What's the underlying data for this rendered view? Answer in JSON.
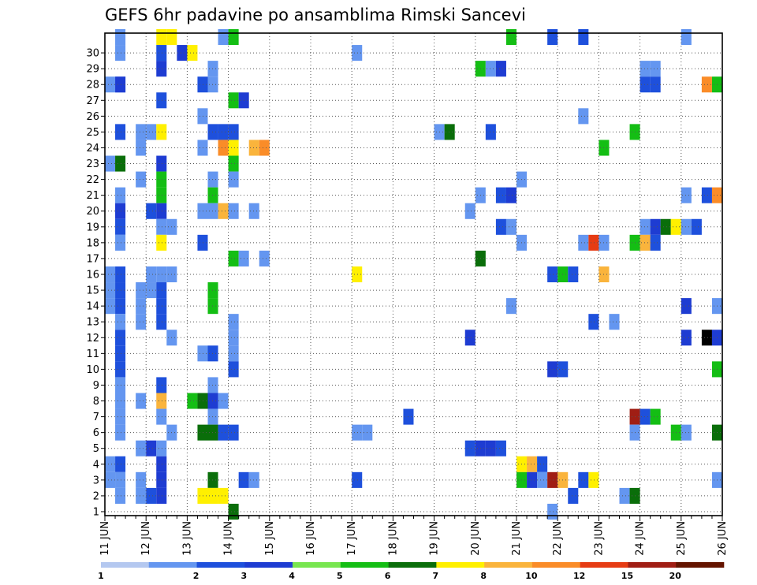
{
  "chart_data": {
    "type": "heatmap",
    "title": "GEFS 6hr padavine po ansamblima Rimski Sancevi",
    "members": [
      "1",
      "2",
      "3",
      "4",
      "5",
      "6",
      "7",
      "8",
      "9",
      "10",
      "11",
      "12",
      "13",
      "14",
      "15",
      "16",
      "17",
      "18",
      "19",
      "20",
      "21",
      "22",
      "23",
      "24",
      "25",
      "26",
      "27",
      "28",
      "29",
      "30"
    ],
    "x_ticks": [
      "11 JUN",
      "12 JUN",
      "13 JUN",
      "14 JUN",
      "15 JUN",
      "16 JUN",
      "17 JUN",
      "18 JUN",
      "19 JUN",
      "20 JUN",
      "21 JUN",
      "22 JUN",
      "23 JUN",
      "24 JUN",
      "25 JUN",
      "26 JUN"
    ],
    "steps_per_day": 4,
    "n_steps": 61,
    "legend_labels": [
      "1",
      "2",
      "3",
      "4",
      "5",
      "6",
      "7",
      "8",
      "10",
      "12",
      "15",
      "20"
    ],
    "palette": [
      "#b4c8f0",
      "#6496f0",
      "#1e50dc",
      "#1e3cd2",
      "#78e650",
      "#14be14",
      "#0a6e0a",
      "#fff000",
      "#fab43c",
      "#fa8c28",
      "#e63c14",
      "#a01e14",
      "#641400"
    ],
    "cells": [
      [
        1,
        30,
        1
      ],
      [
        1,
        29,
        1
      ],
      [
        1,
        27,
        1
      ],
      [
        1,
        24,
        2
      ],
      [
        1,
        20,
        1
      ],
      [
        1,
        19,
        3
      ],
      [
        1,
        18,
        2
      ],
      [
        1,
        17,
        1
      ],
      [
        1,
        15,
        2
      ],
      [
        1,
        14,
        2
      ],
      [
        1,
        13,
        2
      ],
      [
        1,
        12,
        1
      ],
      [
        1,
        11,
        2
      ],
      [
        1,
        10,
        2
      ],
      [
        1,
        9,
        2
      ],
      [
        1,
        8,
        1
      ],
      [
        1,
        7,
        1
      ],
      [
        1,
        6,
        1
      ],
      [
        1,
        5,
        1
      ],
      [
        1,
        3,
        2
      ],
      [
        1,
        2,
        1
      ],
      [
        1,
        1,
        1
      ],
      [
        1,
        27,
        3
      ],
      [
        0,
        27,
        1
      ],
      [
        0,
        22,
        1
      ],
      [
        1,
        22,
        6
      ],
      [
        0,
        15,
        1
      ],
      [
        0,
        14,
        1
      ],
      [
        0,
        13,
        1
      ],
      [
        0,
        3,
        1
      ],
      [
        0,
        2,
        1
      ],
      [
        3,
        24,
        1
      ],
      [
        3,
        23,
        1
      ],
      [
        3,
        21,
        1
      ],
      [
        3,
        7,
        1
      ],
      [
        3,
        2,
        1
      ],
      [
        3,
        1,
        1
      ],
      [
        3,
        13,
        1
      ],
      [
        3,
        12,
        1
      ],
      [
        3,
        14,
        1
      ],
      [
        3,
        4,
        1
      ],
      [
        4,
        19,
        2
      ],
      [
        4,
        15,
        1
      ],
      [
        4,
        14,
        1
      ],
      [
        4,
        24,
        1
      ],
      [
        4,
        1,
        2
      ],
      [
        4,
        4,
        3
      ],
      [
        5,
        30,
        7
      ],
      [
        5,
        29,
        2
      ],
      [
        5,
        28,
        3
      ],
      [
        5,
        26,
        2
      ],
      [
        5,
        24,
        7
      ],
      [
        5,
        22,
        3
      ],
      [
        5,
        21,
        5
      ],
      [
        5,
        20,
        5
      ],
      [
        5,
        19,
        3
      ],
      [
        5,
        18,
        1
      ],
      [
        5,
        17,
        7
      ],
      [
        5,
        15,
        1
      ],
      [
        5,
        14,
        2
      ],
      [
        5,
        13,
        2
      ],
      [
        5,
        12,
        2
      ],
      [
        5,
        8,
        2
      ],
      [
        5,
        7,
        8
      ],
      [
        5,
        6,
        1
      ],
      [
        5,
        4,
        1
      ],
      [
        5,
        3,
        3
      ],
      [
        5,
        2,
        3
      ],
      [
        5,
        1,
        3
      ],
      [
        6,
        30,
        7
      ],
      [
        6,
        18,
        1
      ],
      [
        6,
        15,
        1
      ],
      [
        6,
        11,
        1
      ],
      [
        6,
        5,
        1
      ],
      [
        7,
        29,
        3
      ],
      [
        8,
        29,
        7
      ],
      [
        8,
        7,
        5
      ],
      [
        9,
        27,
        2
      ],
      [
        9,
        25,
        1
      ],
      [
        9,
        23,
        1
      ],
      [
        9,
        19,
        1
      ],
      [
        9,
        17,
        2
      ],
      [
        9,
        10,
        1
      ],
      [
        9,
        7,
        6
      ],
      [
        9,
        5,
        6
      ],
      [
        9,
        1,
        7
      ],
      [
        10,
        28,
        1
      ],
      [
        10,
        27,
        1
      ],
      [
        10,
        24,
        2
      ],
      [
        10,
        21,
        1
      ],
      [
        10,
        20,
        5
      ],
      [
        10,
        19,
        1
      ],
      [
        10,
        14,
        5
      ],
      [
        10,
        13,
        5
      ],
      [
        10,
        10,
        2
      ],
      [
        10,
        8,
        1
      ],
      [
        10,
        7,
        3
      ],
      [
        10,
        6,
        1
      ],
      [
        10,
        5,
        6
      ],
      [
        10,
        2,
        6
      ],
      [
        10,
        1,
        7
      ],
      [
        11,
        30,
        1
      ],
      [
        11,
        24,
        2
      ],
      [
        11,
        23,
        9
      ],
      [
        11,
        19,
        8
      ],
      [
        11,
        7,
        1
      ],
      [
        11,
        5,
        2
      ],
      [
        11,
        1,
        7
      ],
      [
        12,
        30,
        5
      ],
      [
        12,
        26,
        5
      ],
      [
        12,
        24,
        2
      ],
      [
        12,
        23,
        7
      ],
      [
        12,
        22,
        5
      ],
      [
        12,
        21,
        1
      ],
      [
        12,
        19,
        1
      ],
      [
        12,
        16,
        5
      ],
      [
        12,
        12,
        1
      ],
      [
        12,
        11,
        1
      ],
      [
        12,
        10,
        1
      ],
      [
        12,
        9,
        2
      ],
      [
        12,
        5,
        2
      ],
      [
        12,
        0,
        6
      ],
      [
        13,
        26,
        3
      ],
      [
        13,
        16,
        1
      ],
      [
        13,
        2,
        2
      ],
      [
        14,
        23,
        8
      ],
      [
        14,
        19,
        1
      ],
      [
        14,
        2,
        1
      ],
      [
        15,
        23,
        9
      ],
      [
        15,
        16,
        1
      ],
      [
        24,
        29,
        1
      ],
      [
        24,
        15,
        7
      ],
      [
        24,
        5,
        1
      ],
      [
        24,
        2,
        2
      ],
      [
        25,
        5,
        1
      ],
      [
        29,
        6,
        2
      ],
      [
        32,
        24,
        1
      ],
      [
        33,
        24,
        6
      ],
      [
        35,
        19,
        1
      ],
      [
        35,
        11,
        3
      ],
      [
        35,
        4,
        2
      ],
      [
        36,
        28,
        5
      ],
      [
        36,
        20,
        1
      ],
      [
        36,
        16,
        6
      ],
      [
        36,
        4,
        3
      ],
      [
        37,
        28,
        1
      ],
      [
        37,
        24,
        2
      ],
      [
        37,
        4,
        3
      ],
      [
        38,
        28,
        3
      ],
      [
        38,
        20,
        2
      ],
      [
        38,
        18,
        2
      ],
      [
        38,
        4,
        2
      ],
      [
        39,
        30,
        5
      ],
      [
        39,
        20,
        3
      ],
      [
        39,
        18,
        1
      ],
      [
        39,
        13,
        1
      ],
      [
        40,
        21,
        1
      ],
      [
        40,
        17,
        1
      ],
      [
        40,
        3,
        7
      ],
      [
        40,
        2,
        5
      ],
      [
        41,
        3,
        8
      ],
      [
        41,
        2,
        3
      ],
      [
        42,
        3,
        2
      ],
      [
        42,
        2,
        1
      ],
      [
        43,
        30,
        2
      ],
      [
        43,
        15,
        2
      ],
      [
        43,
        9,
        3
      ],
      [
        43,
        2,
        11
      ],
      [
        43,
        0,
        1
      ],
      [
        44,
        15,
        5
      ],
      [
        44,
        9,
        2
      ],
      [
        44,
        2,
        8
      ],
      [
        45,
        15,
        2
      ],
      [
        45,
        1,
        2
      ],
      [
        46,
        30,
        2
      ],
      [
        46,
        25,
        1
      ],
      [
        46,
        17,
        1
      ],
      [
        46,
        2,
        2
      ],
      [
        47,
        17,
        10
      ],
      [
        47,
        12,
        2
      ],
      [
        47,
        2,
        7
      ],
      [
        48,
        23,
        5
      ],
      [
        48,
        17,
        1
      ],
      [
        48,
        15,
        8
      ],
      [
        49,
        12,
        1
      ],
      [
        50,
        1,
        1
      ],
      [
        51,
        24,
        5
      ],
      [
        51,
        17,
        5
      ],
      [
        51,
        6,
        11
      ],
      [
        51,
        5,
        1
      ],
      [
        51,
        1,
        6
      ],
      [
        52,
        28,
        1
      ],
      [
        52,
        27,
        2
      ],
      [
        52,
        18,
        1
      ],
      [
        52,
        17,
        8
      ],
      [
        52,
        6,
        2
      ],
      [
        53,
        28,
        1
      ],
      [
        53,
        27,
        2
      ],
      [
        53,
        18,
        3
      ],
      [
        53,
        17,
        2
      ],
      [
        53,
        6,
        5
      ],
      [
        54,
        18,
        6
      ],
      [
        55,
        18,
        7
      ],
      [
        55,
        5,
        5
      ],
      [
        56,
        30,
        1
      ],
      [
        56,
        20,
        1
      ],
      [
        56,
        18,
        1
      ],
      [
        56,
        13,
        3
      ],
      [
        56,
        11,
        3
      ],
      [
        56,
        5,
        1
      ],
      [
        57,
        18,
        2
      ],
      [
        58,
        27,
        9
      ],
      [
        58,
        20,
        2
      ],
      [
        58,
        11,
        13
      ],
      [
        59,
        27,
        5
      ],
      [
        59,
        20,
        9
      ],
      [
        59,
        13,
        1
      ],
      [
        59,
        11,
        3
      ],
      [
        59,
        9,
        5
      ],
      [
        59,
        5,
        6
      ],
      [
        59,
        2,
        1
      ]
    ]
  }
}
